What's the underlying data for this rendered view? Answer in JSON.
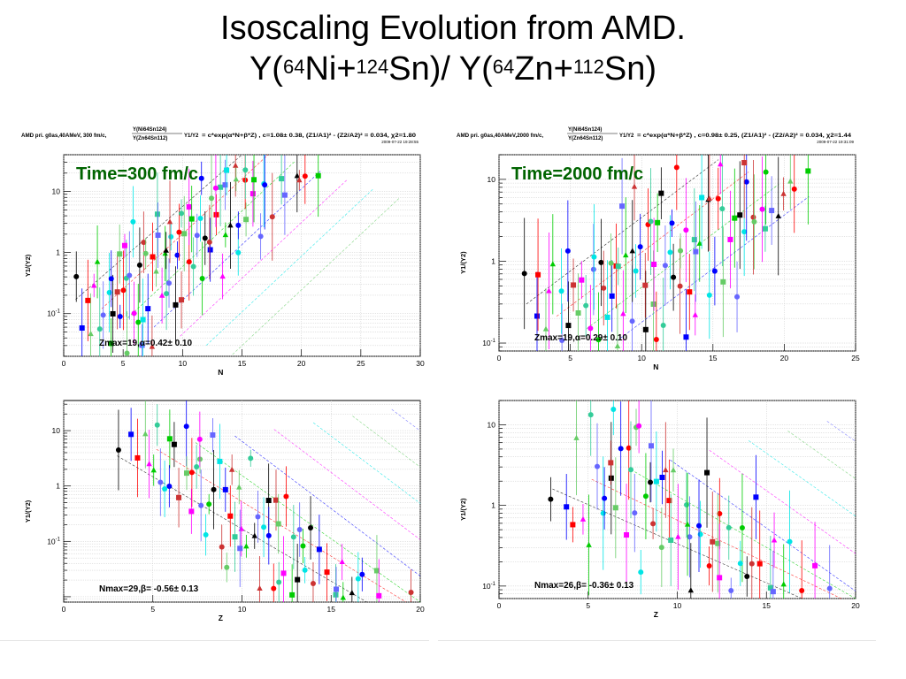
{
  "slide": {
    "title_line1": "Isoscaling Evolution   from AMD.",
    "title_line2": {
      "a": "Y(",
      "s1": "64",
      "b": "Ni+",
      "s2": "124",
      "c": "Sn)/ Y(",
      "s3": "64",
      "d": "Zn+",
      "s4": "112",
      "e": "Sn)"
    }
  },
  "colors": [
    "#000000",
    "#ff0000",
    "#00cc00",
    "#0000ff",
    "#ff00ff",
    "#00e5e5",
    "#66cc66",
    "#6666ff",
    "#cc3333",
    "#33cc99"
  ],
  "chart_data": [
    {
      "type": "scatter",
      "header": {
        "left": "AMD pri. g0as,40AMeV, 300 fm/c,",
        "frac_top": "Y(Ni64Sn124)",
        "frac_bot": "Y(Zn64Sn112)",
        "y1y2": "Y1/Y2",
        "formula": "= c*exp(α*N+β*Z) , c=1.08± 0.38, (Z1/A1)² - (Z2/A2)² = 0.034, χ2=1.80",
        "stamp": "2009-07-22 19:28:55"
      },
      "time_label": "Time=300 fm/c",
      "fit_label": "Zmax=19,α=0.42± 0.10",
      "xlabel": "N",
      "ylabel": "Y1/(Y2)",
      "xlim": [
        0,
        30
      ],
      "ylim": [
        0.02,
        40
      ],
      "log_y": true,
      "xticks": [
        "0",
        "5",
        "10",
        "15",
        "20",
        "25",
        "30"
      ],
      "yticks": [
        "10-1",
        "1",
        "10"
      ],
      "slope": 0.42,
      "group_count": 19,
      "x_start": 1,
      "x_step": 1,
      "points_per_group": 6,
      "start_value": 0.17,
      "group_offset": 0.0,
      "seed": 11
    },
    {
      "type": "scatter",
      "header": {
        "left": "AMD pri. g0as,40AMeV,2000 fm/c,",
        "frac_top": "Y(Ni64Sn124)",
        "frac_bot": "Y(Zn64Sn112)",
        "y1y2": "Y1/Y2",
        "formula": "= c*exp(α*N+β*Z) , c=0.98± 0.25, (Z1/A1)² - (Z2/A2)² = 0.034, χ2=1.44",
        "stamp": "2009-07-22 19:31:09"
      },
      "time_label": "Time=2000 fm/c",
      "fit_label": "Zmax=19,α=0.29± 0.10",
      "xlabel": "N",
      "ylabel": "Y1/(Y2)",
      "xlim": [
        0,
        26
      ],
      "ylim": [
        0.08,
        20
      ],
      "log_y": true,
      "xticks": [
        "0",
        "5",
        "10",
        "15",
        "20",
        "25"
      ],
      "yticks": [
        "10-1",
        "1",
        "10"
      ],
      "slope": 0.29,
      "group_count": 18,
      "x_start": 2,
      "x_step": 1,
      "points_per_group": 6,
      "start_value": 0.3,
      "group_offset": 0.0,
      "seed": 23
    },
    {
      "type": "scatter",
      "header": null,
      "time_label": "",
      "fit_label": "Nmax=29,β= -0.56± 0.13",
      "xlabel": "Z",
      "ylabel": "Y1/(Y2)",
      "xlim": [
        0,
        20
      ],
      "ylim": [
        0.008,
        35
      ],
      "log_y": true,
      "xticks": [
        "0",
        "5",
        "10",
        "15",
        "20"
      ],
      "yticks": [
        "10-1",
        "1",
        "10"
      ],
      "slope": -0.56,
      "group_count": 17,
      "x_start": 3,
      "x_step": 1,
      "points_per_group": 6,
      "start_value": 3.5,
      "group_offset": 0.0,
      "seed": 37
    },
    {
      "type": "scatter",
      "header": null,
      "time_label": "",
      "fit_label": "Nmax=26,β= -0.36± 0.13",
      "xlabel": "Z",
      "ylabel": "Y1/(Y2)",
      "xlim": [
        0,
        20
      ],
      "ylim": [
        0.07,
        20
      ],
      "log_y": true,
      "xticks": [
        "0",
        "5",
        "10",
        "15",
        "20"
      ],
      "yticks": [
        "10-1",
        "1",
        "10"
      ],
      "slope": -0.36,
      "group_count": 17,
      "x_start": 3,
      "x_step": 1,
      "points_per_group": 6,
      "start_value": 1.6,
      "group_offset": 0.0,
      "seed": 51
    }
  ]
}
